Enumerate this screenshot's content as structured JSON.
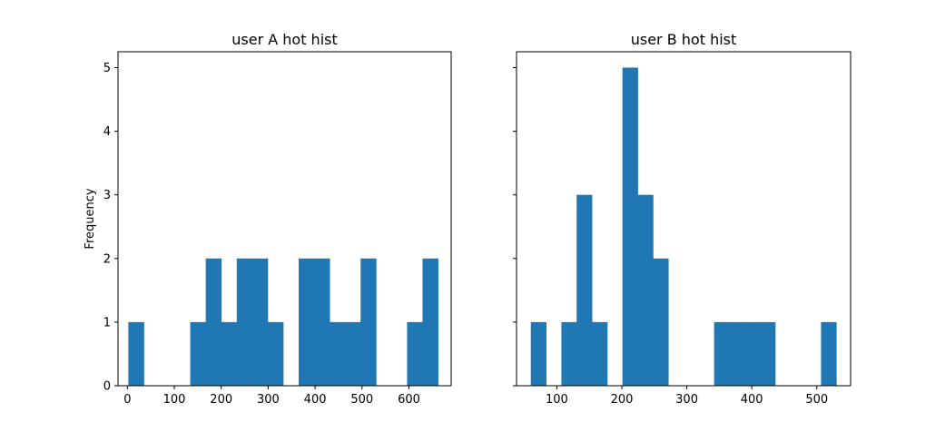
{
  "chart_data": [
    {
      "type": "bar",
      "title": "user A hot hist",
      "xlabel": "",
      "ylabel": "Frequency",
      "xlim": [
        -20,
        690
      ],
      "ylim": [
        0,
        5.25
      ],
      "xticks": [
        0,
        100,
        200,
        300,
        400,
        500,
        600
      ],
      "yticks": [
        0,
        1,
        2,
        3,
        4,
        5
      ],
      "show_ytick_labels": true,
      "grid": false,
      "bar_color": "#1f77b4",
      "bin_edges": [
        2,
        35,
        68,
        101,
        134,
        167,
        200,
        233,
        266,
        299,
        332,
        365,
        398,
        431,
        464,
        497,
        530,
        563,
        596,
        629,
        662
      ],
      "counts": [
        1,
        0,
        0,
        0,
        1,
        2,
        1,
        2,
        2,
        1,
        0,
        2,
        2,
        1,
        1,
        2,
        0,
        0,
        1,
        2
      ]
    },
    {
      "type": "bar",
      "title": "user B hot hist",
      "xlabel": "",
      "ylabel": "",
      "xlim": [
        38,
        552
      ],
      "ylim": [
        0,
        5.25
      ],
      "xticks": [
        100,
        200,
        300,
        400,
        500
      ],
      "yticks": [
        0,
        1,
        2,
        3,
        4,
        5
      ],
      "show_ytick_labels": false,
      "grid": false,
      "bar_color": "#1f77b4",
      "bin_edges": [
        60,
        83.5,
        107,
        130.5,
        154,
        177.5,
        201,
        224.5,
        248,
        271.5,
        295,
        318.5,
        342,
        365.5,
        389,
        412.5,
        436,
        459.5,
        483,
        506.5,
        530
      ],
      "counts": [
        1,
        0,
        1,
        3,
        1,
        0,
        5,
        3,
        2,
        0,
        0,
        0,
        1,
        1,
        1,
        1,
        0,
        0,
        0,
        1
      ]
    }
  ]
}
